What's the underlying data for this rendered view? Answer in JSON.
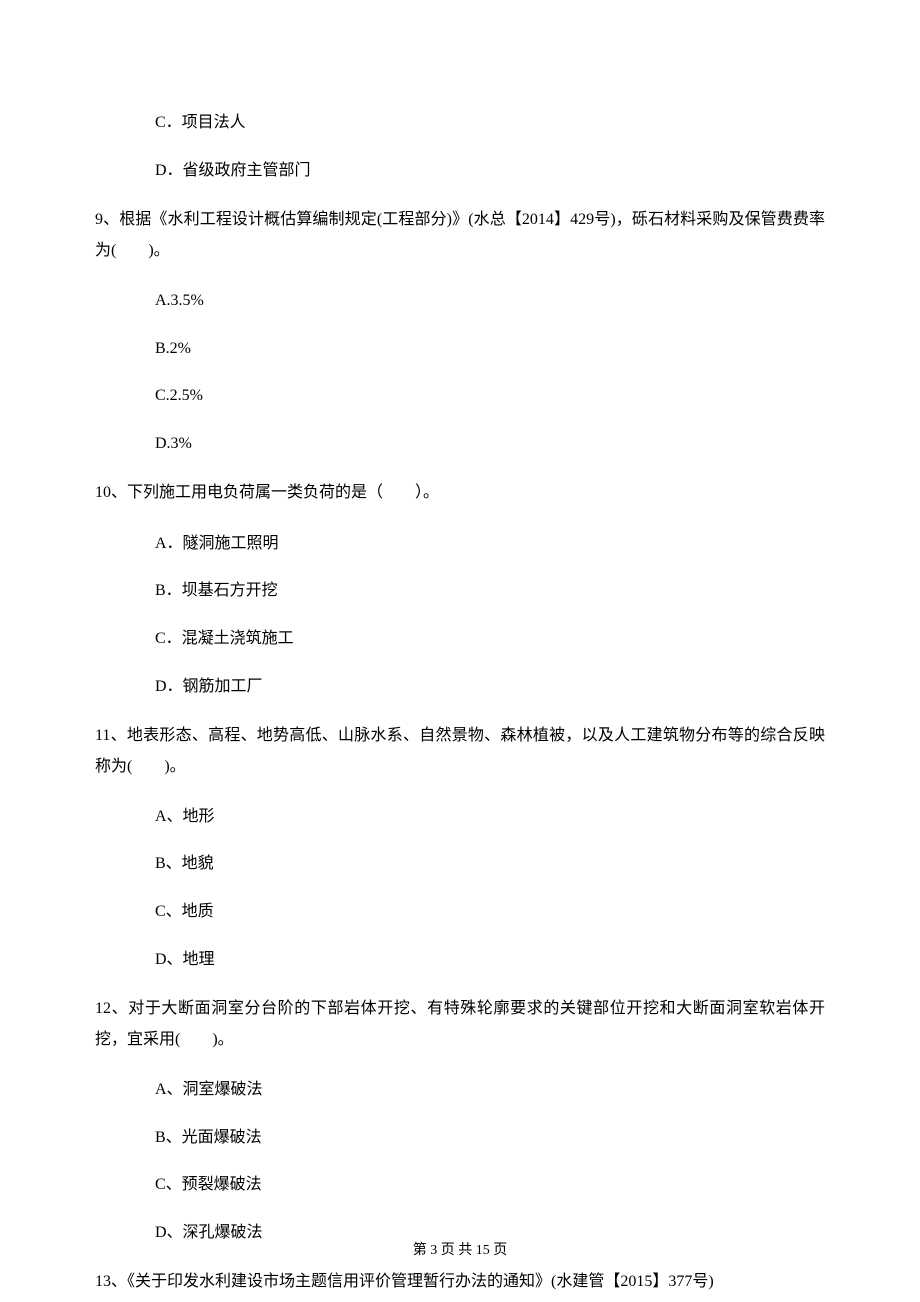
{
  "q8_options": {
    "c": "C．项目法人",
    "d": "D．省级政府主管部门"
  },
  "q9": {
    "text": "9、根据《水利工程设计概估算编制规定(工程部分)》(水总【2014】429号)，砾石材料采购及保管费费率为(　　)。",
    "options": {
      "a": "A.3.5%",
      "b": "B.2%",
      "c": "C.2.5%",
      "d": "D.3%"
    }
  },
  "q10": {
    "text": "10、下列施工用电负荷属一类负荷的是（　　）。",
    "options": {
      "a": "A．隧洞施工照明",
      "b": "B．坝基石方开挖",
      "c": "C．混凝土浇筑施工",
      "d": "D．钢筋加工厂"
    }
  },
  "q11": {
    "text": "11、地表形态、高程、地势高低、山脉水系、自然景物、森林植被，以及人工建筑物分布等的综合反映称为(　　)。",
    "options": {
      "a": "A、地形",
      "b": "B、地貌",
      "c": "C、地质",
      "d": "D、地理"
    }
  },
  "q12": {
    "text": "12、对于大断面洞室分台阶的下部岩体开挖、有特殊轮廓要求的关键部位开挖和大断面洞室软岩体开挖，宜采用(　　)。",
    "options": {
      "a": "A、洞室爆破法",
      "b": "B、光面爆破法",
      "c": "C、预裂爆破法",
      "d": "D、深孔爆破法"
    }
  },
  "q13": {
    "text": "13、《关于印发水利建设市场主题信用评价管理暂行办法的通知》(水建管【2015】377号)"
  },
  "footer": {
    "text": "第 3 页 共 15 页"
  }
}
